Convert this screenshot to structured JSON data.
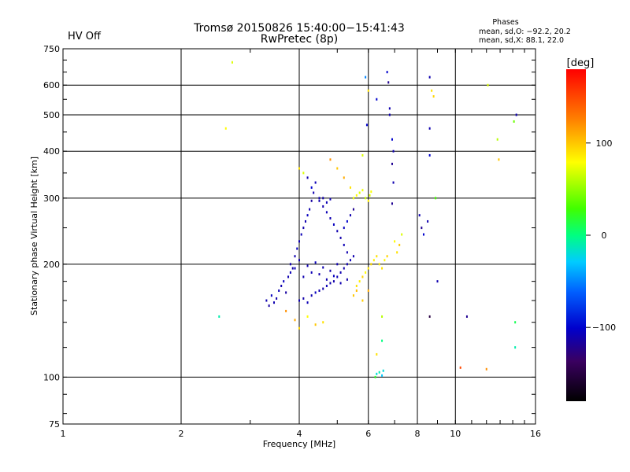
{
  "status": {
    "text": "HV Off",
    "color": "#cc0000"
  },
  "chart_data": {
    "type": "scatter",
    "title": "Tromsø 20150826 15:40:00−15:41:43",
    "subtitle": "RwPretec (8p)",
    "xlabel": "Frequency [MHz]",
    "ylabel": "Stationary phase Virtual Height [km]",
    "x_scale": "log",
    "y_scale": "log",
    "xlim": [
      1,
      16
    ],
    "ylim": [
      75,
      750
    ],
    "x_ticks": [
      1,
      2,
      4,
      6,
      8,
      10,
      16
    ],
    "x_tick_labels": [
      "1",
      "2",
      "4",
      "6",
      "8",
      "10",
      "16"
    ],
    "y_ticks": [
      75,
      100,
      200,
      300,
      400,
      500,
      600,
      750
    ],
    "y_tick_labels": [
      "75",
      "100",
      "200",
      "300",
      "400",
      "500",
      "600",
      "750"
    ],
    "grid": true,
    "stats": {
      "title": "Phases",
      "line1": "mean, sd,O: −92.2, 20.2",
      "line2": "mean, sd,X:  88.1, 22.0"
    },
    "colorbar": {
      "label": "[deg]",
      "range": [
        -180,
        180
      ],
      "ticks": [
        -100,
        0,
        100
      ],
      "tick_labels": [
        "−100",
        "0",
        "100"
      ],
      "orientation": "vertical",
      "position": "right"
    },
    "points": [
      [
        2.7,
        690,
        70
      ],
      [
        2.6,
        460,
        80
      ],
      [
        2.5,
        145,
        -10
      ],
      [
        3.3,
        160,
        -110
      ],
      [
        3.35,
        155,
        -115
      ],
      [
        3.4,
        165,
        -105
      ],
      [
        3.45,
        158,
        -110
      ],
      [
        3.5,
        162,
        -112
      ],
      [
        3.55,
        170,
        -108
      ],
      [
        3.6,
        175,
        -110
      ],
      [
        3.65,
        180,
        -105
      ],
      [
        3.7,
        168,
        -115
      ],
      [
        3.75,
        185,
        -110
      ],
      [
        3.8,
        190,
        -108
      ],
      [
        3.85,
        195,
        -112
      ],
      [
        3.9,
        210,
        -110
      ],
      [
        3.95,
        220,
        -105
      ],
      [
        4.0,
        230,
        -110
      ],
      [
        4.05,
        240,
        -108
      ],
      [
        4.1,
        250,
        -112
      ],
      [
        4.15,
        260,
        -110
      ],
      [
        4.2,
        270,
        -105
      ],
      [
        4.25,
        280,
        -110
      ],
      [
        4.3,
        295,
        -115
      ],
      [
        4.35,
        310,
        -110
      ],
      [
        4.4,
        330,
        -108
      ],
      [
        4.0,
        360,
        90
      ],
      [
        4.1,
        350,
        70
      ],
      [
        4.2,
        340,
        -110
      ],
      [
        4.3,
        320,
        -100
      ],
      [
        4.5,
        300,
        -110
      ],
      [
        4.6,
        285,
        -112
      ],
      [
        4.7,
        275,
        -108
      ],
      [
        4.8,
        265,
        -110
      ],
      [
        4.9,
        255,
        -105
      ],
      [
        5.0,
        245,
        -110
      ],
      [
        5.1,
        235,
        -112
      ],
      [
        5.2,
        225,
        -108
      ],
      [
        5.3,
        215,
        -110
      ],
      [
        4.0,
        160,
        -110
      ],
      [
        4.1,
        162,
        -112
      ],
      [
        4.2,
        158,
        -108
      ],
      [
        4.3,
        165,
        -110
      ],
      [
        4.4,
        168,
        -105
      ],
      [
        4.5,
        170,
        -110
      ],
      [
        4.6,
        172,
        -112
      ],
      [
        4.7,
        175,
        -108
      ],
      [
        4.8,
        178,
        -110
      ],
      [
        4.9,
        180,
        -112
      ],
      [
        5.0,
        185,
        -108
      ],
      [
        5.1,
        190,
        -110
      ],
      [
        5.2,
        195,
        -112
      ],
      [
        5.3,
        200,
        -110
      ],
      [
        5.4,
        205,
        -108
      ],
      [
        5.5,
        210,
        -110
      ],
      [
        3.8,
        200,
        -110
      ],
      [
        3.9,
        195,
        -108
      ],
      [
        4.0,
        205,
        -112
      ],
      [
        4.2,
        198,
        -110
      ],
      [
        4.4,
        202,
        -105
      ],
      [
        4.6,
        196,
        -110
      ],
      [
        4.8,
        192,
        -112
      ],
      [
        5.0,
        200,
        -110
      ],
      [
        4.5,
        295,
        -110
      ],
      [
        4.6,
        300,
        -112
      ],
      [
        4.7,
        292,
        -108
      ],
      [
        4.8,
        298,
        -110
      ],
      [
        5.5,
        300,
        75
      ],
      [
        5.6,
        305,
        80
      ],
      [
        5.7,
        310,
        70
      ],
      [
        5.8,
        315,
        75
      ],
      [
        5.9,
        300,
        65
      ],
      [
        6.0,
        295,
        85
      ],
      [
        6.05,
        305,
        70
      ],
      [
        6.1,
        312,
        78
      ],
      [
        5.6,
        175,
        90
      ],
      [
        5.7,
        180,
        85
      ],
      [
        5.8,
        185,
        95
      ],
      [
        5.9,
        190,
        80
      ],
      [
        6.0,
        195,
        88
      ],
      [
        6.1,
        200,
        92
      ],
      [
        6.2,
        205,
        84
      ],
      [
        6.3,
        210,
        90
      ],
      [
        6.4,
        200,
        86
      ],
      [
        6.5,
        195,
        90
      ],
      [
        6.6,
        205,
        82
      ],
      [
        6.7,
        210,
        95
      ],
      [
        5.5,
        165,
        100
      ],
      [
        5.6,
        170,
        105
      ],
      [
        5.8,
        160,
        98
      ],
      [
        6.0,
        170,
        110
      ],
      [
        4.6,
        140,
        90
      ],
      [
        4.4,
        138,
        100
      ],
      [
        4.2,
        145,
        80
      ],
      [
        4.0,
        135,
        95
      ],
      [
        3.9,
        142,
        110
      ],
      [
        3.7,
        150,
        120
      ],
      [
        5.0,
        360,
        100
      ],
      [
        5.2,
        340,
        110
      ],
      [
        5.4,
        320,
        90
      ],
      [
        4.8,
        380,
        120
      ],
      [
        5.8,
        390,
        70
      ],
      [
        6.0,
        580,
        90
      ],
      [
        6.3,
        550,
        -100
      ],
      [
        6.8,
        500,
        -110
      ],
      [
        5.9,
        630,
        -50
      ],
      [
        5.95,
        470,
        -100
      ],
      [
        6.7,
        650,
        -100
      ],
      [
        6.75,
        610,
        -120
      ],
      [
        6.8,
        520,
        -110
      ],
      [
        6.9,
        430,
        -100
      ],
      [
        6.95,
        400,
        -110
      ],
      [
        6.9,
        370,
        -120
      ],
      [
        6.95,
        330,
        -110
      ],
      [
        6.9,
        290,
        -120
      ],
      [
        8.6,
        630,
        -110
      ],
      [
        8.7,
        580,
        90
      ],
      [
        8.8,
        560,
        95
      ],
      [
        8.6,
        460,
        -110
      ],
      [
        8.6,
        390,
        -100
      ],
      [
        8.1,
        270,
        -110
      ],
      [
        8.2,
        250,
        -120
      ],
      [
        8.3,
        240,
        -100
      ],
      [
        8.5,
        260,
        -110
      ],
      [
        8.9,
        300,
        30
      ],
      [
        9.0,
        180,
        -110
      ],
      [
        8.6,
        145,
        -150
      ],
      [
        10.7,
        145,
        -120
      ],
      [
        12.1,
        600,
        70
      ],
      [
        12.8,
        430,
        60
      ],
      [
        12.9,
        380,
        100
      ],
      [
        14.3,
        500,
        -110
      ],
      [
        14.1,
        480,
        40
      ],
      [
        14.2,
        140,
        10
      ],
      [
        14.2,
        120,
        -10
      ],
      [
        6.3,
        102,
        -20
      ],
      [
        6.4,
        103,
        -10
      ],
      [
        6.5,
        101,
        -30
      ],
      [
        6.55,
        104,
        -20
      ],
      [
        6.25,
        100,
        20
      ],
      [
        10.3,
        106,
        150
      ],
      [
        12.0,
        105,
        120
      ],
      [
        6.5,
        125,
        0
      ],
      [
        6.3,
        115,
        90
      ],
      [
        6.5,
        145,
        60
      ],
      [
        7.0,
        230,
        80
      ],
      [
        7.1,
        215,
        90
      ],
      [
        7.2,
        225,
        100
      ],
      [
        7.3,
        240,
        70
      ],
      [
        5.3,
        260,
        -100
      ],
      [
        5.4,
        270,
        -110
      ],
      [
        5.5,
        280,
        -120
      ],
      [
        5.2,
        250,
        -105
      ],
      [
        4.1,
        185,
        -110
      ],
      [
        4.3,
        190,
        -108
      ],
      [
        4.5,
        188,
        -112
      ],
      [
        4.7,
        182,
        -110
      ],
      [
        4.9,
        186,
        -105
      ],
      [
        5.1,
        178,
        -110
      ],
      [
        5.3,
        182,
        -112
      ]
    ]
  }
}
